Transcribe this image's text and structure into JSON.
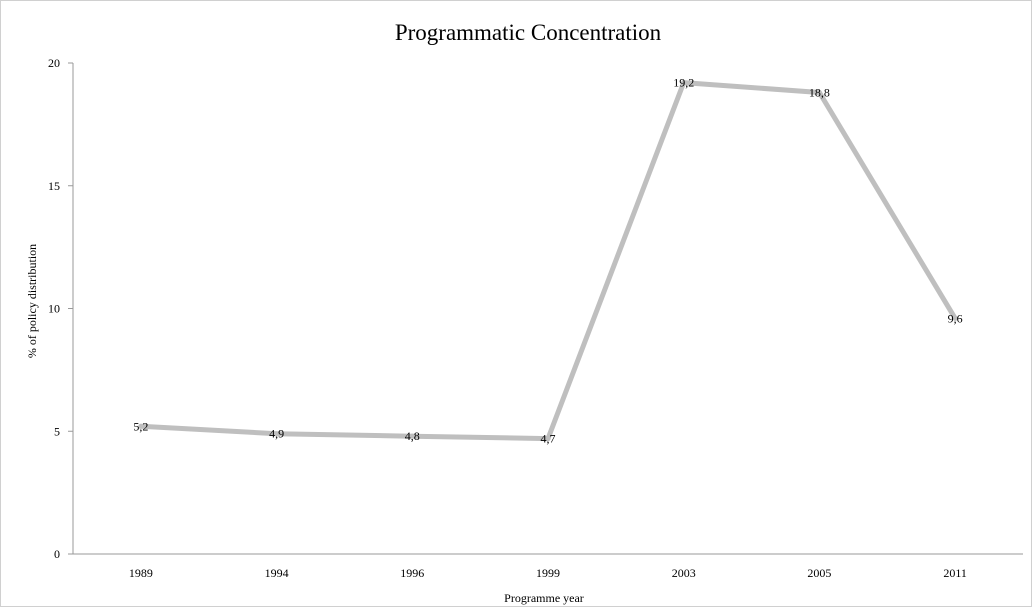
{
  "chart_data": {
    "type": "line",
    "title": "Programmatic Concentration",
    "xlabel": "Programme year",
    "ylabel": "% of policy distribution",
    "categories": [
      "1989",
      "1994",
      "1996",
      "1999",
      "2003",
      "2005",
      "2011"
    ],
    "series": [
      {
        "values": [
          5.2,
          4.9,
          4.8,
          4.7,
          19.2,
          18.8,
          9.6
        ],
        "data_labels": [
          "5,2",
          "4,9",
          "4,8",
          "4,7",
          "19,2",
          "18,8",
          "9,6"
        ],
        "color": "#bfbfbf"
      }
    ],
    "ylim": [
      0,
      20
    ],
    "yticks": [
      {
        "value": 0,
        "label": "0"
      },
      {
        "value": 5,
        "label": "5"
      },
      {
        "value": 10,
        "label": "10"
      },
      {
        "value": 15,
        "label": "15"
      },
      {
        "value": 20,
        "label": "20"
      }
    ],
    "grid": false,
    "legend": "none",
    "axis_color": "#999999"
  }
}
